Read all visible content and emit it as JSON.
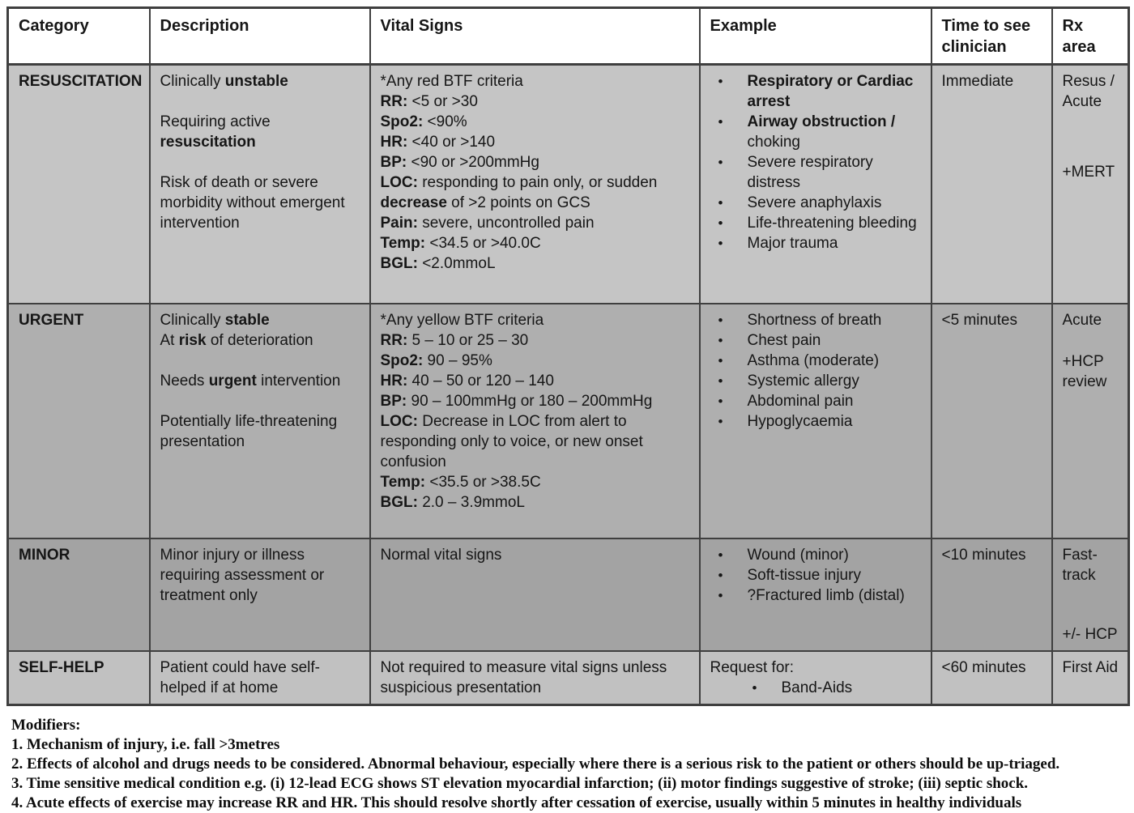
{
  "colors": {
    "page_bg": "#ffffff",
    "border": "#3f3f3f",
    "header_bg": "#ffffff",
    "text": "#161616"
  },
  "table": {
    "headers": [
      "Category",
      "Description",
      "Vital Signs",
      "Example",
      "Time to see clinician",
      "Rx area"
    ],
    "rows": [
      {
        "name": "resuscitation",
        "bg": "#c5c5c5",
        "category": "RESUSCITATION",
        "description": [
          [
            {
              "t": "Clinically "
            },
            {
              "t": "unstable",
              "b": true
            }
          ],
          [],
          [
            {
              "t": "Requiring active "
            },
            {
              "t": "resuscitation",
              "b": true
            }
          ],
          [],
          [
            {
              "t": "Risk of death or severe morbidity without emergent intervention"
            }
          ]
        ],
        "vitals": [
          [
            {
              "t": "*Any red BTF criteria"
            }
          ],
          [
            {
              "t": "RR:",
              "b": true
            },
            {
              "t": " <5 or >30"
            }
          ],
          [
            {
              "t": "Spo2:",
              "b": true
            },
            {
              "t": " <90%"
            }
          ],
          [
            {
              "t": "HR:",
              "b": true
            },
            {
              "t": " <40 or >140"
            }
          ],
          [
            {
              "t": "BP:",
              "b": true
            },
            {
              "t": " <90 or >200mmHg"
            }
          ],
          [
            {
              "t": "LOC:",
              "b": true
            },
            {
              "t": " responding to pain only, or sudden "
            },
            {
              "t": "decrease",
              "b": true
            },
            {
              "t": " of >2 points on GCS"
            }
          ],
          [
            {
              "t": "Pain:",
              "b": true
            },
            {
              "t": " severe, uncontrolled pain"
            }
          ],
          [
            {
              "t": "Temp:",
              "b": true
            },
            {
              "t": " <34.5 or >40.0C"
            }
          ],
          [
            {
              "t": "BGL:",
              "b": true
            },
            {
              "t": " <2.0mmoL"
            }
          ]
        ],
        "examples": [
          {
            "bullet": true,
            "segs": [
              {
                "t": "Respiratory or Cardiac arrest",
                "b": true
              }
            ]
          },
          {
            "bullet": true,
            "segs": [
              {
                "t": "Airway obstruction /",
                "b": true
              },
              {
                "t": " choking"
              }
            ]
          },
          {
            "bullet": true,
            "segs": [
              {
                "t": "Severe respiratory distress"
              }
            ]
          },
          {
            "bullet": true,
            "segs": [
              {
                "t": "Severe anaphylaxis"
              }
            ]
          },
          {
            "bullet": true,
            "segs": [
              {
                "t": "Life-threatening bleeding"
              }
            ]
          },
          {
            "bullet": true,
            "segs": [
              {
                "t": "Major trauma"
              }
            ]
          }
        ],
        "time": "Immediate",
        "rx": [
          "Resus / Acute",
          "+MERT"
        ]
      },
      {
        "name": "urgent",
        "bg": "#afafaf",
        "category": "URGENT",
        "description": [
          [
            {
              "t": "Clinically "
            },
            {
              "t": "stable",
              "b": true
            }
          ],
          [
            {
              "t": "At "
            },
            {
              "t": "risk",
              "b": true
            },
            {
              "t": " of deterioration"
            }
          ],
          [],
          [
            {
              "t": "Needs "
            },
            {
              "t": "urgent",
              "b": true
            },
            {
              "t": " intervention"
            }
          ],
          [],
          [
            {
              "t": "Potentially life-threatening presentation"
            }
          ]
        ],
        "vitals": [
          [
            {
              "t": "*Any yellow BTF criteria"
            }
          ],
          [
            {
              "t": "RR:",
              "b": true
            },
            {
              "t": " 5 – 10 or 25 – 30"
            }
          ],
          [
            {
              "t": "Spo2:",
              "b": true
            },
            {
              "t": " 90 – 95%"
            }
          ],
          [
            {
              "t": "HR:",
              "b": true
            },
            {
              "t": " 40 – 50 or 120 – 140"
            }
          ],
          [
            {
              "t": "BP:",
              "b": true
            },
            {
              "t": " 90 – 100mmHg or 180 – 200mmHg"
            }
          ],
          [
            {
              "t": "LOC:",
              "b": true
            },
            {
              "t": " Decrease in LOC from alert to responding only to voice, or new onset confusion"
            }
          ],
          [
            {
              "t": "Temp:",
              "b": true
            },
            {
              "t": " <35.5 or >38.5C"
            }
          ],
          [
            {
              "t": "BGL:",
              "b": true
            },
            {
              "t": " 2.0 – 3.9mmoL"
            }
          ]
        ],
        "examples": [
          {
            "bullet": true,
            "segs": [
              {
                "t": "Shortness of breath"
              }
            ]
          },
          {
            "bullet": true,
            "segs": [
              {
                "t": "Chest pain"
              }
            ]
          },
          {
            "bullet": true,
            "segs": [
              {
                "t": "Asthma (moderate)"
              }
            ]
          },
          {
            "bullet": true,
            "segs": [
              {
                "t": "Systemic allergy"
              }
            ]
          },
          {
            "bullet": true,
            "segs": [
              {
                "t": "Abdominal pain"
              }
            ]
          },
          {
            "bullet": true,
            "segs": [
              {
                "t": "Hypoglycaemia"
              }
            ]
          }
        ],
        "time": "<5 minutes",
        "rx": [
          "Acute",
          "+HCP review"
        ]
      },
      {
        "name": "minor",
        "bg": "#a3a3a3",
        "category": "MINOR",
        "description": [
          [
            {
              "t": "Minor injury or illness requiring assessment or treatment only"
            }
          ]
        ],
        "vitals": [
          [
            {
              "t": "Normal vital signs"
            }
          ]
        ],
        "examples": [
          {
            "bullet": true,
            "segs": [
              {
                "t": "Wound (minor)"
              }
            ]
          },
          {
            "bullet": true,
            "segs": [
              {
                "t": "Soft-tissue injury"
              }
            ]
          },
          {
            "bullet": true,
            "segs": [
              {
                "t": "?Fractured limb (distal)"
              }
            ]
          }
        ],
        "time": "<10 minutes",
        "rx": [
          "Fast-track",
          "+/- HCP"
        ]
      },
      {
        "name": "self-help",
        "bg": "#c1c1c1",
        "category": "SELF-HELP",
        "description": [
          [
            {
              "t": "Patient could have self-helped if at home"
            }
          ]
        ],
        "vitals": [
          [
            {
              "t": "Not required to measure vital signs unless suspicious presentation"
            }
          ]
        ],
        "examples": [
          {
            "bullet": false,
            "segs": [
              {
                "t": "Request for:"
              }
            ]
          },
          {
            "bullet": true,
            "indent": true,
            "segs": [
              {
                "t": "Band-Aids"
              }
            ]
          }
        ],
        "time": "<60 minutes",
        "rx": [
          "First Aid"
        ]
      }
    ]
  },
  "modifiers": {
    "title": "Modifiers:",
    "items": [
      "1. Mechanism of injury, i.e. fall >3metres",
      "2. Effects of alcohol and drugs needs to be considered. Abnormal behaviour, especially where there is a serious risk to the patient or others should be up-triaged.",
      "3. Time sensitive medical condition e.g. (i) 12-lead ECG shows ST elevation myocardial infarction; (ii) motor findings suggestive of stroke; (iii) septic shock.",
      "4. Acute effects of exercise may increase RR and HR. This should resolve shortly after cessation of exercise, usually within 5 minutes in healthy individuals"
    ]
  }
}
